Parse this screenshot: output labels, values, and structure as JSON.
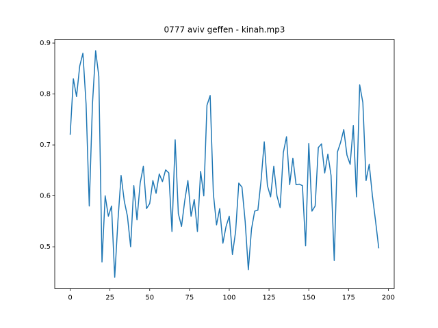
{
  "chart_data": {
    "type": "line",
    "title": "0777 aviv geffen - kinah.mp3",
    "x": [
      0,
      2,
      4,
      6,
      8,
      10,
      12,
      14,
      16,
      18,
      20,
      22,
      24,
      26,
      28,
      30,
      32,
      34,
      36,
      38,
      40,
      42,
      44,
      46,
      48,
      50,
      52,
      54,
      56,
      58,
      60,
      62,
      64,
      66,
      68,
      70,
      72,
      74,
      76,
      78,
      80,
      82,
      84,
      86,
      88,
      90,
      92,
      94,
      96,
      98,
      100,
      102,
      104,
      106,
      108,
      110,
      112,
      114,
      116,
      118,
      120,
      122,
      124,
      126,
      128,
      130,
      132,
      134,
      136,
      138,
      140,
      142,
      144,
      146,
      148,
      150,
      152,
      154,
      156,
      158,
      160,
      162,
      164,
      166,
      168,
      170,
      172,
      174,
      176,
      178,
      180,
      182,
      184,
      186,
      188,
      190,
      192,
      194
    ],
    "series": [
      {
        "name": "kinah",
        "color": "#1f77b4",
        "values": [
          0.72,
          0.83,
          0.795,
          0.855,
          0.88,
          0.78,
          0.58,
          0.78,
          0.885,
          0.835,
          0.47,
          0.6,
          0.56,
          0.58,
          0.44,
          0.55,
          0.64,
          0.59,
          0.56,
          0.5,
          0.62,
          0.553,
          0.625,
          0.658,
          0.575,
          0.585,
          0.63,
          0.605,
          0.643,
          0.628,
          0.651,
          0.645,
          0.53,
          0.71,
          0.565,
          0.54,
          0.59,
          0.63,
          0.56,
          0.593,
          0.53,
          0.648,
          0.6,
          0.778,
          0.797,
          0.605,
          0.543,
          0.575,
          0.507,
          0.54,
          0.56,
          0.485,
          0.53,
          0.625,
          0.617,
          0.55,
          0.455,
          0.535,
          0.57,
          0.572,
          0.63,
          0.706,
          0.62,
          0.598,
          0.658,
          0.6,
          0.577,
          0.685,
          0.716,
          0.622,
          0.674,
          0.622,
          0.623,
          0.62,
          0.502,
          0.703,
          0.57,
          0.58,
          0.695,
          0.702,
          0.645,
          0.682,
          0.64,
          0.473,
          0.686,
          0.705,
          0.73,
          0.68,
          0.662,
          0.738,
          0.598,
          0.818,
          0.783,
          0.63,
          0.662,
          0.6,
          0.55,
          0.497
        ]
      }
    ],
    "xlim": [
      -9.7,
      203.7
    ],
    "xticks": [
      0,
      25,
      50,
      75,
      100,
      125,
      150,
      175,
      200
    ],
    "ylim": [
      0.4178,
      0.9073
    ],
    "yticks": [
      0.5,
      0.6,
      0.7,
      0.8,
      0.9
    ]
  }
}
